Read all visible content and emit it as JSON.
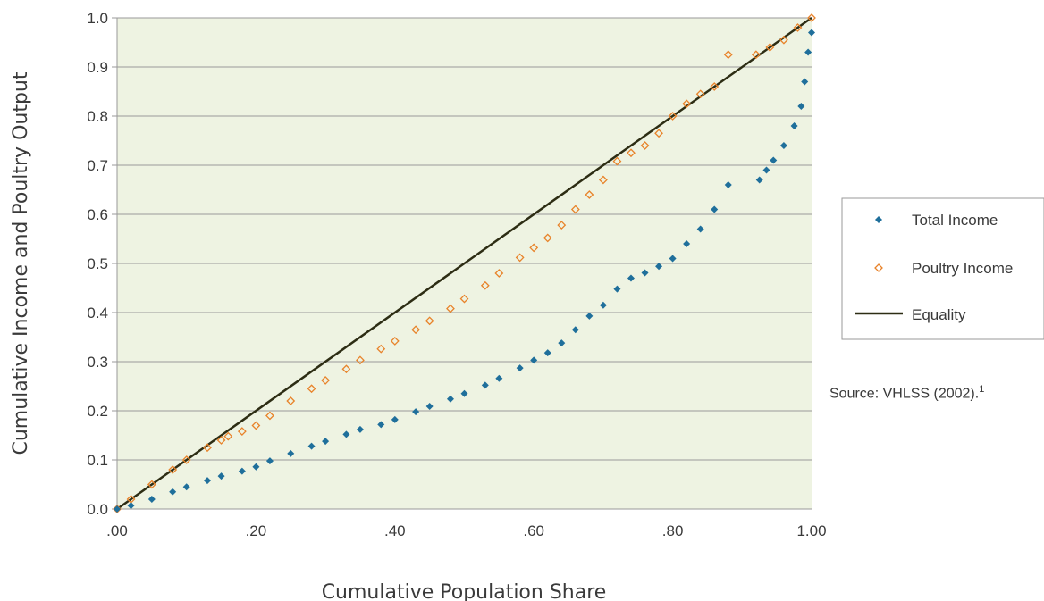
{
  "chart_data": {
    "type": "scatter",
    "title": "",
    "xlabel": "Cumulative Population Share",
    "ylabel": "Cumulative Income and Poultry Output",
    "xlim": [
      0,
      1
    ],
    "ylim": [
      0,
      1
    ],
    "x_ticks": [
      ".00",
      ".20",
      ".40",
      ".60",
      ".80",
      "1.00"
    ],
    "y_ticks": [
      "0.0",
      "0.1",
      "0.2",
      "0.3",
      "0.4",
      "0.5",
      "0.6",
      "0.7",
      "0.8",
      "0.9",
      "1.0"
    ],
    "grid": "horizontal",
    "legend_position": "right",
    "background_color": "#eef3e2",
    "series": [
      {
        "name": "Total Income",
        "marker": "diamond-filled",
        "color": "#1f6f9b",
        "points": [
          [
            0,
            0
          ],
          [
            0.02,
            0.007
          ],
          [
            0.05,
            0.02
          ],
          [
            0.08,
            0.035
          ],
          [
            0.1,
            0.045
          ],
          [
            0.13,
            0.058
          ],
          [
            0.15,
            0.067
          ],
          [
            0.18,
            0.077
          ],
          [
            0.2,
            0.086
          ],
          [
            0.22,
            0.098
          ],
          [
            0.25,
            0.113
          ],
          [
            0.28,
            0.128
          ],
          [
            0.3,
            0.138
          ],
          [
            0.33,
            0.152
          ],
          [
            0.35,
            0.162
          ],
          [
            0.38,
            0.172
          ],
          [
            0.4,
            0.182
          ],
          [
            0.43,
            0.198
          ],
          [
            0.45,
            0.209
          ],
          [
            0.48,
            0.224
          ],
          [
            0.5,
            0.235
          ],
          [
            0.53,
            0.252
          ],
          [
            0.55,
            0.266
          ],
          [
            0.58,
            0.287
          ],
          [
            0.6,
            0.303
          ],
          [
            0.62,
            0.318
          ],
          [
            0.64,
            0.338
          ],
          [
            0.66,
            0.365
          ],
          [
            0.68,
            0.393
          ],
          [
            0.7,
            0.415
          ],
          [
            0.72,
            0.448
          ],
          [
            0.74,
            0.47
          ],
          [
            0.76,
            0.481
          ],
          [
            0.78,
            0.494
          ],
          [
            0.8,
            0.51
          ],
          [
            0.82,
            0.54
          ],
          [
            0.84,
            0.57
          ],
          [
            0.86,
            0.61
          ],
          [
            0.88,
            0.66
          ],
          [
            0.925,
            0.67
          ],
          [
            0.935,
            0.69
          ],
          [
            0.945,
            0.71
          ],
          [
            0.96,
            0.74
          ],
          [
            0.975,
            0.78
          ],
          [
            0.985,
            0.82
          ],
          [
            0.99,
            0.87
          ],
          [
            0.995,
            0.93
          ],
          [
            1.0,
            0.97
          ]
        ]
      },
      {
        "name": "Poultry Income",
        "marker": "diamond-open",
        "color": "#e8832a",
        "points": [
          [
            0,
            0
          ],
          [
            0.02,
            0.02
          ],
          [
            0.05,
            0.05
          ],
          [
            0.08,
            0.08
          ],
          [
            0.1,
            0.1
          ],
          [
            0.13,
            0.125
          ],
          [
            0.15,
            0.14
          ],
          [
            0.16,
            0.148
          ],
          [
            0.18,
            0.158
          ],
          [
            0.2,
            0.17
          ],
          [
            0.22,
            0.19
          ],
          [
            0.25,
            0.22
          ],
          [
            0.28,
            0.245
          ],
          [
            0.3,
            0.262
          ],
          [
            0.33,
            0.285
          ],
          [
            0.35,
            0.303
          ],
          [
            0.38,
            0.326
          ],
          [
            0.4,
            0.342
          ],
          [
            0.43,
            0.365
          ],
          [
            0.45,
            0.383
          ],
          [
            0.48,
            0.408
          ],
          [
            0.5,
            0.428
          ],
          [
            0.53,
            0.455
          ],
          [
            0.55,
            0.48
          ],
          [
            0.58,
            0.512
          ],
          [
            0.6,
            0.532
          ],
          [
            0.62,
            0.552
          ],
          [
            0.64,
            0.578
          ],
          [
            0.66,
            0.61
          ],
          [
            0.68,
            0.64
          ],
          [
            0.7,
            0.67
          ],
          [
            0.72,
            0.708
          ],
          [
            0.74,
            0.725
          ],
          [
            0.76,
            0.74
          ],
          [
            0.78,
            0.765
          ],
          [
            0.8,
            0.8
          ],
          [
            0.82,
            0.825
          ],
          [
            0.84,
            0.845
          ],
          [
            0.86,
            0.86
          ],
          [
            0.88,
            0.925
          ],
          [
            0.92,
            0.925
          ],
          [
            0.94,
            0.94
          ],
          [
            0.96,
            0.955
          ],
          [
            0.98,
            0.98
          ],
          [
            1.0,
            1.0
          ]
        ]
      },
      {
        "name": "Equality",
        "marker": "line",
        "color": "#2d2d14",
        "points": [
          [
            0,
            0
          ],
          [
            1,
            1
          ]
        ]
      }
    ],
    "annotations": [
      {
        "text": "Source: VHLSS (2002).",
        "superscript": "1"
      }
    ]
  }
}
